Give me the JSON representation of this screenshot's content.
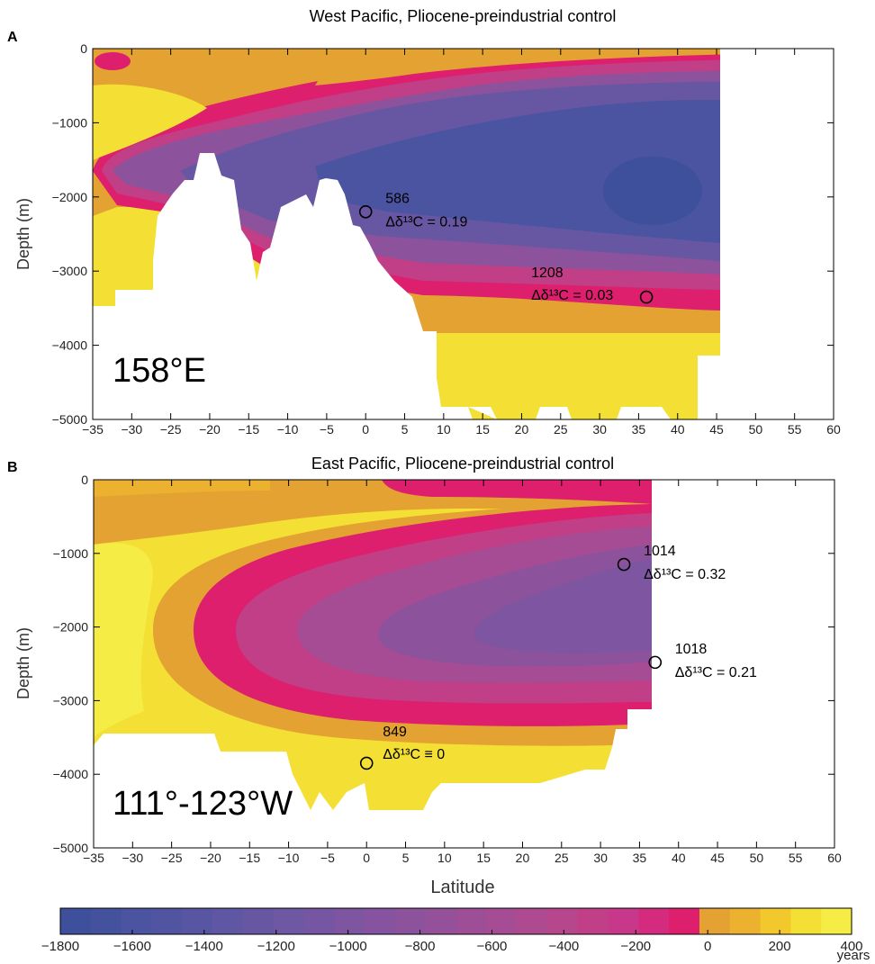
{
  "chart_data": [
    {
      "panel_label": "A",
      "type": "heatmap",
      "title": "West Pacific, Pliocene-preindustrial control",
      "xlabel": "",
      "ylabel": "Depth (m)",
      "xlim": [
        -35,
        60
      ],
      "ylim": [
        -5000,
        0
      ],
      "x_ticks": [
        "-35",
        "-30",
        "-25",
        "-20",
        "-15",
        "-10",
        "-5",
        "0",
        "5",
        "10",
        "15",
        "20",
        "25",
        "30",
        "35",
        "40",
        "45",
        "50",
        "55",
        "60"
      ],
      "y_ticks": [
        "0",
        "-1000",
        "-2000",
        "-3000",
        "-4000",
        "-5000"
      ],
      "longitude_label": "158°E",
      "sites": [
        {
          "x": 0,
          "y": -2200,
          "id": "586",
          "delta": "Δδ¹³C = 0.19"
        },
        {
          "x": 36,
          "y": -3350,
          "id": "1208",
          "delta": "Δδ¹³C = 0.03"
        }
      ]
    },
    {
      "panel_label": "B",
      "type": "heatmap",
      "title": "East Pacific, Pliocene-preindustrial control",
      "xlabel": "Latitude",
      "ylabel": "Depth (m)",
      "xlim": [
        -35,
        60
      ],
      "ylim": [
        -5000,
        0
      ],
      "x_ticks": [
        "-35",
        "-30",
        "-25",
        "-20",
        "-15",
        "-10",
        "-5",
        "0",
        "5",
        "10",
        "15",
        "20",
        "25",
        "30",
        "35",
        "40",
        "45",
        "50",
        "55",
        "60"
      ],
      "y_ticks": [
        "0",
        "-1000",
        "-2000",
        "-3000",
        "-4000",
        "-5000"
      ],
      "longitude_label": "111°-123°W",
      "sites": [
        {
          "x": 33,
          "y": -1150,
          "id": "1014",
          "delta": "Δδ¹³C = 0.32"
        },
        {
          "x": 37,
          "y": -2480,
          "id": "1018",
          "delta": "Δδ¹³C = 0.21"
        },
        {
          "x": 0,
          "y": -3850,
          "id": "849",
          "delta": "Δδ¹³C ≡ 0"
        }
      ]
    }
  ],
  "colorbar": {
    "unit": "years",
    "range": [
      -1800,
      400
    ],
    "tick_values": [
      -1800,
      -1600,
      -1400,
      -1200,
      -1000,
      -800,
      -600,
      -400,
      -200,
      0,
      200,
      400
    ],
    "tick_labels": [
      "−1800",
      "−1600",
      "−1400",
      "−1200",
      "−1000",
      "−800",
      "−600",
      "−400",
      "−200",
      "0",
      "200",
      "400"
    ],
    "colors": [
      "#3e4f9c",
      "#44529e",
      "#4a54a0",
      "#5155a1",
      "#5856a2",
      "#5f57a3",
      "#6757a3",
      "#6e57a3",
      "#7656a2",
      "#7d55a1",
      "#85539f",
      "#8d529c",
      "#95509a",
      "#9d4e97",
      "#a64c94",
      "#ae4a90",
      "#b7478c",
      "#c03f87",
      "#c8388a",
      "#d42b7e",
      "#dd1f6e",
      "#e3a232",
      "#ecb12f",
      "#f3c82d",
      "#f4e034",
      "#f5ec46"
    ]
  }
}
